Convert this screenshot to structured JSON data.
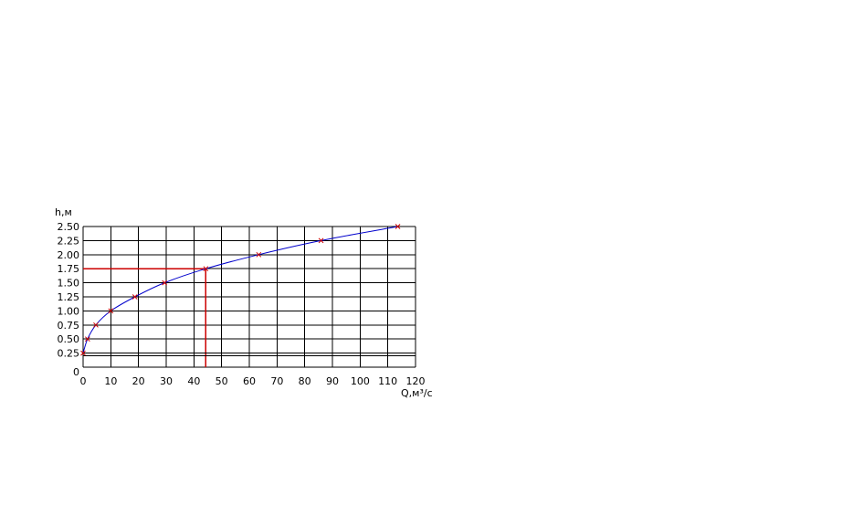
{
  "chart_data": {
    "type": "line",
    "xlabel": "Q,м³/с",
    "ylabel": "h,м",
    "xlim": [
      0,
      120
    ],
    "ylim": [
      0,
      2.5
    ],
    "x_ticks": [
      "0",
      "10",
      "20",
      "30",
      "40",
      "50",
      "60",
      "70",
      "80",
      "90",
      "100",
      "110",
      "120"
    ],
    "y_ticks": [
      "0",
      "0.25",
      "0.50",
      "0.75",
      "1.00",
      "1.25",
      "1.50",
      "1.75",
      "2.00",
      "2.25",
      "2.50"
    ],
    "grid": true,
    "series": [
      {
        "x": [
          0,
          1.6,
          4.6,
          10,
          18.7,
          29.4,
          44.3,
          63.4,
          85.9,
          113.6
        ],
        "y": [
          0.25,
          0.5,
          0.75,
          1.0,
          1.25,
          1.5,
          1.75,
          2.0,
          2.25,
          2.5
        ],
        "color": "#0000cc",
        "marker": "x",
        "marker_color": "#cc0000"
      }
    ],
    "reference_lines": [
      {
        "kind": "horizontal",
        "y": 1.75,
        "x_to": 44.3,
        "color": "#cc0000"
      },
      {
        "kind": "vertical",
        "x": 44.3,
        "y_from": 0,
        "y_to": 1.75,
        "color": "#cc0000"
      },
      {
        "kind": "horizontal",
        "y": 0.25,
        "color": "#000000"
      }
    ]
  }
}
